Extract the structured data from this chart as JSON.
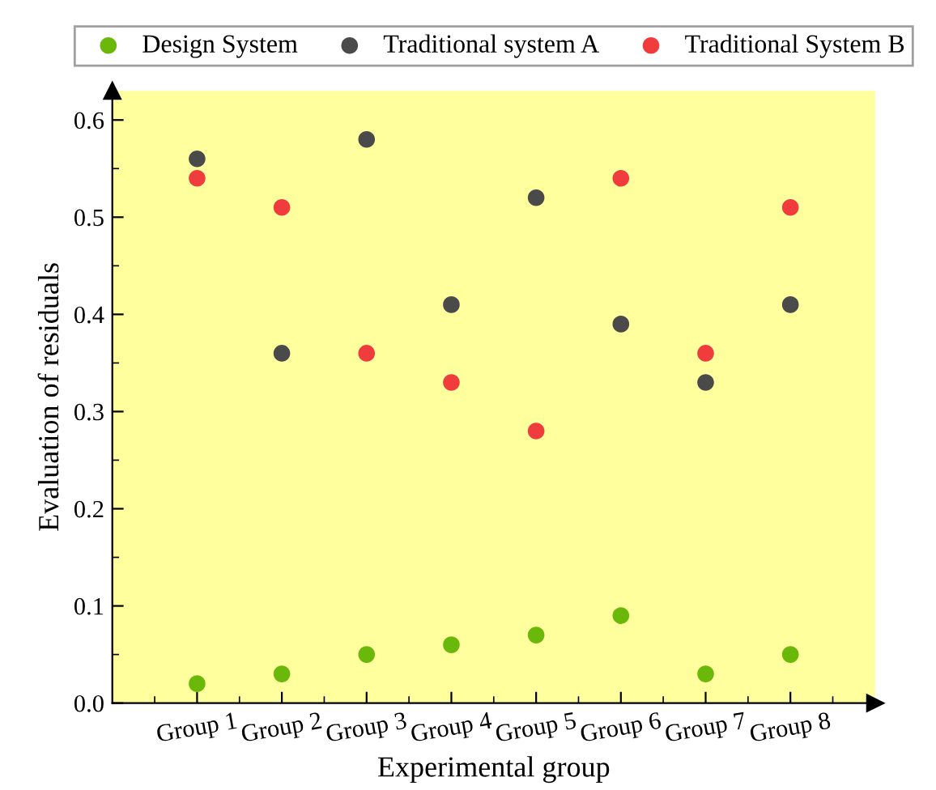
{
  "chart_data": {
    "type": "scatter",
    "xlabel": "Experimental group",
    "ylabel": "Evaluation of residuals",
    "categories": [
      "Group 1",
      "Group 2",
      "Group 3",
      "Group 4",
      "Group 5",
      "Group 6",
      "Group 7",
      "Group 8"
    ],
    "series": [
      {
        "name": "Design System",
        "color": "#6ab80a",
        "values": [
          0.02,
          0.03,
          0.05,
          0.06,
          0.07,
          0.09,
          0.03,
          0.05
        ]
      },
      {
        "name": "Traditional system A",
        "color": "#4a4a4a",
        "values": [
          0.56,
          0.36,
          0.58,
          0.41,
          0.52,
          0.39,
          0.33,
          0.41
        ]
      },
      {
        "name": "Traditional System B",
        "color": "#f03c3c",
        "values": [
          0.54,
          0.51,
          0.36,
          0.33,
          0.28,
          0.54,
          0.36,
          0.51
        ]
      }
    ],
    "ylim": [
      0,
      0.63
    ],
    "yticks": [
      {
        "value": 0,
        "label": "0.0"
      },
      0.1,
      0.2,
      0.3,
      0.4,
      0.5,
      0.6
    ],
    "marker": "circle",
    "grid": false,
    "legend": "top"
  }
}
